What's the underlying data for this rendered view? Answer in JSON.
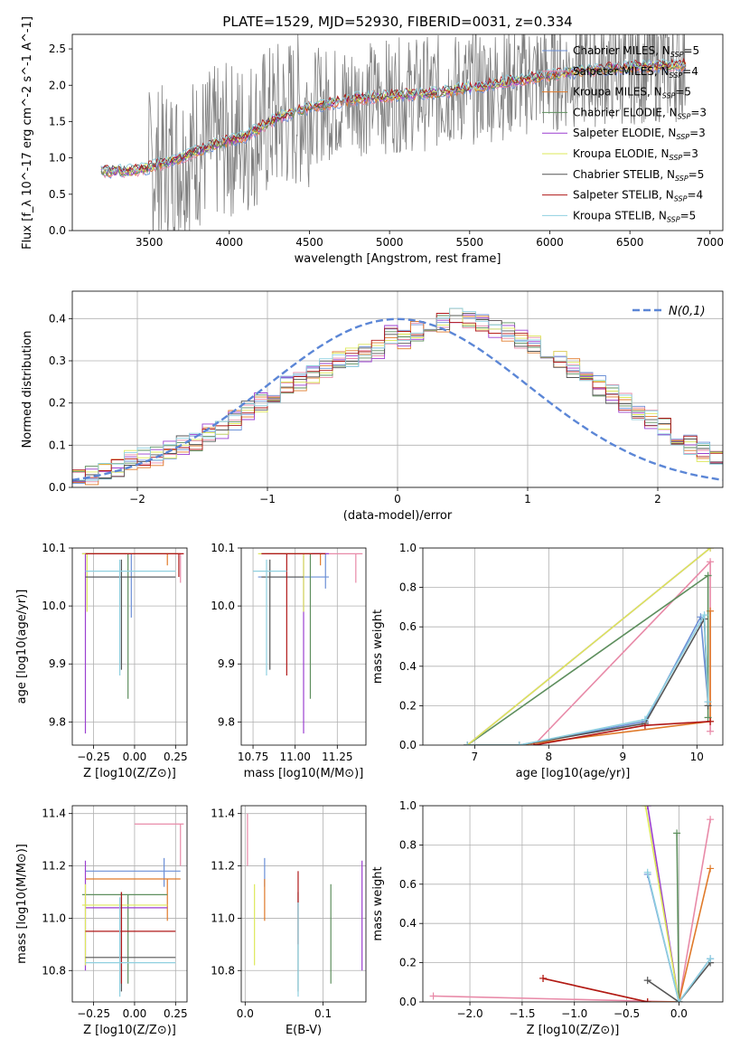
{
  "title": "PLATE=1529, MJD=52930, FIBERID=0031, z=0.334",
  "colors": [
    "#6b8fd6",
    "#e88aa8",
    "#e07a2a",
    "#5e8f5e",
    "#9b3fd0",
    "#dde85a",
    "#555555",
    "#b01818",
    "#8fd0e0"
  ],
  "gauss_color": "#5b86d6",
  "legend": [
    {
      "name": "Chabrier MILES, N",
      "sub": "SSP",
      "suffix": "=5"
    },
    {
      "name": "Salpeter MILES, N",
      "sub": "SSP",
      "suffix": "=4"
    },
    {
      "name": "Kroupa MILES, N",
      "sub": "SSP",
      "suffix": "=5"
    },
    {
      "name": "Chabrier ELODIE, N",
      "sub": "SSP",
      "suffix": "=3"
    },
    {
      "name": "Salpeter ELODIE, N",
      "sub": "SSP",
      "suffix": "=3"
    },
    {
      "name": "Kroupa ELODIE, N",
      "sub": "SSP",
      "suffix": "=3"
    },
    {
      "name": "Chabrier STELIB, N",
      "sub": "SSP",
      "suffix": "=5"
    },
    {
      "name": "Salpeter STELIB, N",
      "sub": "SSP",
      "suffix": "=4"
    },
    {
      "name": "Kroupa STELIB, N",
      "sub": "SSP",
      "suffix": "=5"
    }
  ],
  "chart_data": [
    {
      "type": "line",
      "name": "spectrum",
      "xlabel": "wavelength [Angstrom, rest frame]",
      "ylabel": "Flux [f_λ 10^-17 erg cm^-2 s^-1 A^-1]",
      "xlim": [
        3020,
        7080
      ],
      "ylim": [
        0,
        2.7
      ],
      "xticks": [
        3500,
        4000,
        4500,
        5000,
        5500,
        6000,
        6500,
        7000
      ],
      "yticks": [
        0.0,
        0.5,
        1.0,
        1.5,
        2.0,
        2.5
      ],
      "data_color": "#808080",
      "data_range": [
        3200,
        6850
      ],
      "continuum": [
        [
          3200,
          0.82
        ],
        [
          3400,
          0.82
        ],
        [
          3550,
          0.9
        ],
        [
          3700,
          1.0
        ],
        [
          3900,
          1.18
        ],
        [
          4100,
          1.3
        ],
        [
          4300,
          1.55
        ],
        [
          4500,
          1.7
        ],
        [
          4800,
          1.82
        ],
        [
          5000,
          1.85
        ],
        [
          5300,
          1.9
        ],
        [
          5600,
          2.0
        ],
        [
          5900,
          2.1
        ],
        [
          6200,
          2.2
        ],
        [
          6500,
          2.25
        ],
        [
          6850,
          2.28
        ]
      ],
      "noisy_from": 3500
    },
    {
      "type": "step",
      "name": "residual histogram",
      "xlabel": "(data-model)/error",
      "ylabel": "Normed distribution",
      "xlim": [
        -2.5,
        2.5
      ],
      "ylim": [
        0,
        0.465
      ],
      "xticks": [
        -2,
        -1,
        0,
        1,
        2
      ],
      "yticks": [
        0.0,
        0.1,
        0.2,
        0.3,
        0.4
      ],
      "legend_label": "N(0,1)",
      "bin_width": 0.1,
      "bins_from": -2.5,
      "values": [
        0.025,
        0.03,
        0.04,
        0.05,
        0.065,
        0.07,
        0.075,
        0.09,
        0.1,
        0.11,
        0.13,
        0.14,
        0.16,
        0.18,
        0.2,
        0.215,
        0.24,
        0.25,
        0.27,
        0.28,
        0.3,
        0.31,
        0.32,
        0.33,
        0.36,
        0.35,
        0.37,
        0.37,
        0.39,
        0.4,
        0.4,
        0.39,
        0.38,
        0.37,
        0.35,
        0.34,
        0.32,
        0.3,
        0.28,
        0.26,
        0.24,
        0.22,
        0.2,
        0.18,
        0.16,
        0.14,
        0.12,
        0.1,
        0.085,
        0.07
      ]
    },
    {
      "type": "errorbar",
      "name": "age vs Z",
      "xlabel": "Z [log10(Z/Z⊙)]",
      "ylabel": "age  [log10(age/yr)]",
      "xlim": [
        -0.38,
        0.32
      ],
      "ylim": [
        9.76,
        10.1
      ],
      "xticks": [
        -0.25,
        0.0,
        0.25
      ],
      "xticklabels": [
        "−0.25",
        "0.00",
        "0.25"
      ],
      "yticks": [
        9.8,
        9.9,
        10.0,
        10.1
      ],
      "yticklabels": [
        "9.8",
        "9.9",
        "10.0",
        "10.1"
      ],
      "points": [
        {
          "s": 0,
          "x": -0.02,
          "xl": -0.3,
          "xr": 0.25,
          "y": 10.05,
          "yl": 9.98,
          "yh": 10.09
        },
        {
          "s": 1,
          "x": 0.28,
          "xl": -0.3,
          "xr": 0.3,
          "y": 10.09,
          "yl": 10.04,
          "yh": 10.09
        },
        {
          "s": 2,
          "x": 0.2,
          "xl": -0.3,
          "xr": 0.28,
          "y": 10.09,
          "yl": 10.07,
          "yh": 10.09
        },
        {
          "s": 3,
          "x": -0.04,
          "xl": -0.3,
          "xr": 0.25,
          "y": 10.09,
          "yl": 9.84,
          "yh": 10.09
        },
        {
          "s": 4,
          "x": -0.3,
          "xl": -0.32,
          "xr": 0.26,
          "y": 10.09,
          "yl": 9.78,
          "yh": 10.09
        },
        {
          "s": 5,
          "x": -0.29,
          "xl": -0.32,
          "xr": 0.26,
          "y": 10.09,
          "yl": 9.99,
          "yh": 10.09
        },
        {
          "s": 6,
          "x": -0.08,
          "xl": -0.3,
          "xr": 0.25,
          "y": 10.05,
          "yl": 9.89,
          "yh": 10.08
        },
        {
          "s": 7,
          "x": 0.27,
          "xl": -0.3,
          "xr": 0.3,
          "y": 10.09,
          "yl": 10.05,
          "yh": 10.09
        },
        {
          "s": 8,
          "x": -0.09,
          "xl": -0.3,
          "xr": 0.25,
          "y": 10.06,
          "yl": 9.88,
          "yh": 10.08
        }
      ]
    },
    {
      "type": "errorbar",
      "name": "age vs mass",
      "xlabel": "mass [log10(M/M⊙)]",
      "xlim": [
        10.68,
        11.42
      ],
      "ylim": [
        9.76,
        10.1
      ],
      "xticks": [
        10.75,
        11.0,
        11.25
      ],
      "xticklabels": [
        "10.75",
        "11.00",
        "11.25"
      ],
      "yticks": [
        9.8,
        9.9,
        10.0,
        10.1
      ],
      "yticklabels": [
        "9.8",
        "9.9",
        "10.0",
        "10.1"
      ],
      "points": [
        {
          "s": 0,
          "x": 11.18,
          "xl": 10.78,
          "xr": 11.2,
          "y": 10.05,
          "yl": 10.03,
          "yh": 10.09
        },
        {
          "s": 1,
          "x": 11.36,
          "xl": 11.02,
          "xr": 11.4,
          "y": 10.09,
          "yl": 10.04,
          "yh": 10.09
        },
        {
          "s": 2,
          "x": 11.15,
          "xl": 10.82,
          "xr": 11.18,
          "y": 10.09,
          "yl": 10.07,
          "yh": 10.09
        },
        {
          "s": 3,
          "x": 11.09,
          "xl": 10.8,
          "xr": 11.15,
          "y": 10.09,
          "yl": 9.84,
          "yh": 10.09
        },
        {
          "s": 4,
          "x": 11.05,
          "xl": 10.8,
          "xr": 11.2,
          "y": 10.09,
          "yl": 9.78,
          "yh": 10.09
        },
        {
          "s": 5,
          "x": 11.05,
          "xl": 10.78,
          "xr": 11.1,
          "y": 10.09,
          "yl": 9.99,
          "yh": 10.09
        },
        {
          "s": 6,
          "x": 10.85,
          "xl": 10.8,
          "xr": 11.05,
          "y": 10.05,
          "yl": 9.89,
          "yh": 10.08
        },
        {
          "s": 7,
          "x": 10.95,
          "xl": 10.8,
          "xr": 11.18,
          "y": 10.09,
          "yl": 9.88,
          "yh": 10.09
        },
        {
          "s": 8,
          "x": 10.83,
          "xl": 10.75,
          "xr": 10.95,
          "y": 10.06,
          "yl": 9.88,
          "yh": 10.08
        }
      ]
    },
    {
      "type": "line",
      "name": "mass weight vs age",
      "xlabel": "age  [log10(age/yr)]",
      "ylabel": "mass weight",
      "xlim": [
        6.3,
        10.35
      ],
      "ylim": [
        0,
        1
      ],
      "xticks": [
        7,
        8,
        9,
        10
      ],
      "yticks": [
        0.0,
        0.2,
        0.4,
        0.6,
        0.8,
        1.0
      ],
      "series": [
        {
          "s": 0,
          "points": [
            [
              6.9,
              0.0
            ],
            [
              7.6,
              0.0
            ],
            [
              9.3,
              0.12
            ],
            [
              10.05,
              0.65
            ],
            [
              10.15,
              0.22
            ]
          ]
        },
        {
          "s": 1,
          "points": [
            [
              7.8,
              0.0
            ],
            [
              10.18,
              0.93
            ],
            [
              10.18,
              0.07
            ]
          ]
        },
        {
          "s": 2,
          "points": [
            [
              6.9,
              0.0
            ],
            [
              7.6,
              0.0
            ],
            [
              10.18,
              0.12
            ],
            [
              10.18,
              0.68
            ]
          ]
        },
        {
          "s": 3,
          "points": [
            [
              6.9,
              0.0
            ],
            [
              10.15,
              0.86
            ],
            [
              10.15,
              0.14
            ]
          ]
        },
        {
          "s": 4,
          "points": [
            [
              6.9,
              0.0
            ],
            [
              10.18,
              1.0
            ]
          ]
        },
        {
          "s": 5,
          "points": [
            [
              6.9,
              0.0
            ],
            [
              10.18,
              1.0
            ]
          ]
        },
        {
          "s": 6,
          "points": [
            [
              6.9,
              0.0
            ],
            [
              7.6,
              0.0
            ],
            [
              9.3,
              0.11
            ],
            [
              10.1,
              0.64
            ],
            [
              10.15,
              0.2
            ]
          ]
        },
        {
          "s": 7,
          "points": [
            [
              7.8,
              0.0
            ],
            [
              9.3,
              0.1
            ],
            [
              10.18,
              0.12
            ]
          ]
        },
        {
          "s": 8,
          "points": [
            [
              6.9,
              0.0
            ],
            [
              7.6,
              0.0
            ],
            [
              9.3,
              0.13
            ],
            [
              10.1,
              0.66
            ],
            [
              10.15,
              0.22
            ]
          ]
        }
      ]
    },
    {
      "type": "errorbar",
      "name": "mass vs Z",
      "xlabel": "Z [log10(Z/Z⊙)]",
      "ylabel": "mass [log10(M/M⊙)]",
      "xlim": [
        -0.38,
        0.32
      ],
      "ylim": [
        10.68,
        11.43
      ],
      "xticks": [
        -0.25,
        0.0,
        0.25
      ],
      "xticklabels": [
        "−0.25",
        "0.00",
        "0.25"
      ],
      "yticks": [
        10.8,
        11.0,
        11.2,
        11.4
      ],
      "yticklabels": [
        "10.8",
        "11.0",
        "11.2",
        "11.4"
      ],
      "points": [
        {
          "s": 0,
          "x": 0.18,
          "xl": -0.3,
          "xr": 0.28,
          "y": 11.18,
          "yl": 11.12,
          "yh": 11.23
        },
        {
          "s": 1,
          "x": 0.28,
          "xl": 0.0,
          "xr": 0.3,
          "y": 11.36,
          "yl": 11.2,
          "yh": 11.36
        },
        {
          "s": 2,
          "x": 0.2,
          "xl": -0.3,
          "xr": 0.28,
          "y": 11.15,
          "yl": 10.99,
          "yh": 11.15
        },
        {
          "s": 3,
          "x": -0.04,
          "xl": -0.32,
          "xr": 0.2,
          "y": 11.09,
          "yl": 10.75,
          "yh": 11.09
        },
        {
          "s": 4,
          "x": -0.3,
          "xl": -0.3,
          "xr": 0.2,
          "y": 11.04,
          "yl": 10.8,
          "yh": 11.22
        },
        {
          "s": 5,
          "x": -0.3,
          "xl": -0.32,
          "xr": 0.2,
          "y": 11.05,
          "yl": 10.82,
          "yh": 11.13
        },
        {
          "s": 6,
          "x": -0.08,
          "xl": -0.3,
          "xr": 0.25,
          "y": 10.85,
          "yl": 10.72,
          "yh": 11.1
        },
        {
          "s": 7,
          "x": -0.08,
          "xl": -0.3,
          "xr": 0.25,
          "y": 10.95,
          "yl": 10.75,
          "yh": 11.1
        },
        {
          "s": 8,
          "x": -0.09,
          "xl": -0.3,
          "xr": 0.25,
          "y": 10.83,
          "yl": 10.7,
          "yh": 11.08
        }
      ]
    },
    {
      "type": "errorbar",
      "name": "mass vs E(B-V)",
      "xlabel": "E(B-V)",
      "xlim": [
        -0.005,
        0.155
      ],
      "ylim": [
        10.68,
        11.43
      ],
      "xticks": [
        0.0,
        0.1
      ],
      "xticklabels": [
        "0.0",
        "0.1"
      ],
      "yticks": [
        10.8,
        11.0,
        11.2,
        11.4
      ],
      "yticklabels": [
        "10.8",
        "11.0",
        "11.2",
        "11.4"
      ],
      "points": [
        {
          "s": 0,
          "x": 0.025,
          "y": 11.18,
          "yl": 11.12,
          "yh": 11.23
        },
        {
          "s": 1,
          "x": 0.003,
          "y": 11.36,
          "yl": 11.2,
          "yh": 11.4
        },
        {
          "s": 2,
          "x": 0.025,
          "y": 11.15,
          "yl": 10.99,
          "yh": 11.15
        },
        {
          "s": 3,
          "x": 0.11,
          "y": 11.09,
          "yl": 10.75,
          "yh": 11.13
        },
        {
          "s": 4,
          "x": 0.15,
          "y": 11.04,
          "yl": 10.8,
          "yh": 11.22
        },
        {
          "s": 5,
          "x": 0.012,
          "y": 11.05,
          "yl": 10.82,
          "yh": 11.13
        },
        {
          "s": 6,
          "x": 0.068,
          "y": 10.85,
          "yl": 10.72,
          "yh": 11.1
        },
        {
          "s": 7,
          "x": 0.068,
          "y": 10.95,
          "yl": 10.9,
          "yh": 11.18
        },
        {
          "s": 8,
          "x": 0.068,
          "y": 10.83,
          "yl": 10.7,
          "yh": 11.06
        }
      ]
    },
    {
      "type": "line",
      "name": "mass weight vs Z",
      "xlabel": "Z [log10(Z/Z⊙)]",
      "ylabel": "mass weight",
      "xlim": [
        -2.45,
        0.42
      ],
      "ylim": [
        0,
        1
      ],
      "xticks": [
        -2.0,
        -1.5,
        -1.0,
        -0.5,
        0.0
      ],
      "xticklabels": [
        "−2.0",
        "−1.5",
        "−1.0",
        "−0.5",
        "0.0"
      ],
      "yticks": [
        0.0,
        0.2,
        0.4,
        0.6,
        0.8,
        1.0
      ],
      "yticklabels": [
        "0.0",
        "0.2",
        "0.4",
        "0.6",
        "0.8",
        "1.0"
      ],
      "series": [
        {
          "s": 0,
          "points": [
            [
              -0.3,
              0.65
            ],
            [
              0.0,
              0.0
            ],
            [
              0.3,
              0.22
            ]
          ]
        },
        {
          "s": 1,
          "points": [
            [
              -2.35,
              0.03
            ],
            [
              0.0,
              0.0
            ],
            [
              0.3,
              0.93
            ]
          ]
        },
        {
          "s": 2,
          "points": [
            [
              -1.3,
              0.12
            ],
            [
              -0.3,
              0.0
            ],
            [
              0.0,
              0.0
            ],
            [
              0.3,
              0.68
            ]
          ]
        },
        {
          "s": 3,
          "points": [
            [
              -0.02,
              0.86
            ],
            [
              0.0,
              0.0
            ]
          ]
        },
        {
          "s": 4,
          "points": [
            [
              -0.3,
              1.0
            ],
            [
              0.0,
              0.0
            ]
          ]
        },
        {
          "s": 5,
          "points": [
            [
              -0.32,
              1.0
            ],
            [
              0.0,
              0.0
            ]
          ]
        },
        {
          "s": 6,
          "points": [
            [
              -0.3,
              0.11
            ],
            [
              0.0,
              0.0
            ],
            [
              0.3,
              0.2
            ]
          ]
        },
        {
          "s": 7,
          "points": [
            [
              -1.3,
              0.12
            ],
            [
              -0.3,
              0.0
            ]
          ]
        },
        {
          "s": 8,
          "points": [
            [
              -0.3,
              0.66
            ],
            [
              0.0,
              0.0
            ],
            [
              0.3,
              0.22
            ]
          ]
        }
      ]
    }
  ]
}
